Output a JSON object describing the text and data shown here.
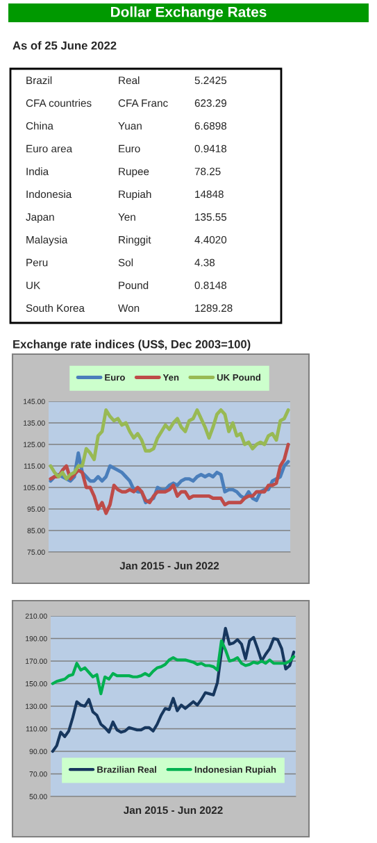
{
  "chart_data": [
    {
      "type": "other",
      "title": "Dollar Exchange Rates",
      "subtitle": "As of 25 June 2022",
      "annotations": [
        "Brazil",
        "Real",
        "5.2425",
        "CFA countries",
        "CFA Franc",
        "623.29",
        "China",
        "Yuan",
        "6.6898",
        "Euro area",
        "Euro",
        "0.9418",
        "India",
        "Rupee",
        "78.25",
        "Indonesia",
        "Rupiah",
        "14848",
        "Japan",
        "Yen",
        "135.55",
        "Malaysia",
        "Ringgit",
        "4.4020",
        "Peru",
        "Sol",
        "4.38",
        "UK",
        "Pound",
        "0.8148",
        "South Korea",
        "Won",
        "1289.28"
      ]
    },
    {
      "type": "line",
      "title": "Exchange rate indices (US$, Dec 2003=100)",
      "xlabel": "Jan 2015 - Jun 2022",
      "categories": [
        null,
        null,
        null,
        null,
        null,
        null,
        null,
        null,
        null,
        null,
        null,
        null,
        null,
        null,
        null,
        null,
        null,
        null,
        null,
        null,
        null,
        null,
        null,
        null,
        null,
        null,
        null,
        null,
        null,
        null,
        null,
        null,
        null,
        null,
        null,
        null,
        null,
        null,
        null,
        null,
        null,
        null,
        null,
        null,
        null,
        null,
        null,
        null,
        null,
        null,
        null,
        null,
        null,
        null,
        null,
        null,
        null,
        null,
        null,
        null,
        null
      ],
      "series": [
        {
          "name": "Euro",
          "color": "#4a7ebb",
          "values": [
            108,
            110,
            111,
            110,
            109,
            108,
            110,
            121,
            112,
            110,
            108,
            108,
            110,
            108,
            110,
            115,
            114,
            113,
            112,
            110,
            108,
            104,
            103,
            103,
            98,
            99,
            100,
            105,
            104,
            104,
            106,
            107,
            106,
            108,
            109,
            109,
            108,
            110,
            111,
            110,
            111,
            110,
            112,
            111,
            103,
            104,
            104,
            103,
            101,
            100,
            103,
            100,
            99,
            103,
            104,
            104,
            108,
            109,
            110,
            115,
            117
          ]
        },
        {
          "name": "Yen",
          "color": "#be4b48",
          "values": [
            109,
            110,
            110,
            113,
            115,
            109,
            111,
            113,
            112,
            105,
            105,
            101,
            95,
            98,
            93,
            97,
            106,
            104,
            103,
            103,
            104,
            103,
            105,
            103,
            99,
            98,
            101,
            103,
            103,
            103,
            104,
            106,
            101,
            103,
            103,
            100,
            101,
            101,
            101,
            101,
            101,
            100,
            100,
            100,
            97,
            98,
            98,
            98,
            98,
            100,
            101,
            101,
            103,
            103,
            103,
            106,
            106,
            107,
            115,
            118,
            125
          ]
        },
        {
          "name": "UK Pound",
          "color": "#98b954",
          "values": [
            115,
            112,
            110,
            112,
            109,
            111,
            112,
            115,
            115,
            123,
            121,
            118,
            129,
            131,
            141,
            138,
            136,
            137,
            134,
            135,
            131,
            128,
            130,
            127,
            122,
            122,
            123,
            128,
            131,
            134,
            132,
            135,
            137,
            133,
            131,
            136,
            137,
            141,
            137,
            133,
            128,
            133,
            139,
            141,
            139,
            131,
            135,
            129,
            130,
            125,
            126,
            123,
            125,
            126,
            125,
            129,
            130,
            127,
            136,
            137,
            141
          ]
        }
      ],
      "ylim": [
        75,
        145
      ],
      "yticks": [
        {
          "value": 75,
          "label": "75.00"
        },
        {
          "value": 85,
          "label": "85.00"
        },
        {
          "value": 95,
          "label": "95.00"
        },
        {
          "value": 105,
          "label": "105.00"
        },
        {
          "value": 115,
          "label": "115.00"
        },
        {
          "value": 125,
          "label": "125.00"
        },
        {
          "value": 135,
          "label": "135.00"
        },
        {
          "value": 145,
          "label": "145.00"
        }
      ],
      "grid": "y",
      "legend": "top",
      "tick_labels": "y"
    },
    {
      "type": "line",
      "xlabel": "Jan 2015 - Jun 2022",
      "categories": [
        null,
        null,
        null,
        null,
        null,
        null,
        null,
        null,
        null,
        null,
        null,
        null,
        null,
        null,
        null,
        null,
        null,
        null,
        null,
        null,
        null,
        null,
        null,
        null,
        null,
        null,
        null,
        null,
        null,
        null,
        null,
        null,
        null,
        null,
        null,
        null,
        null,
        null,
        null,
        null,
        null,
        null,
        null,
        null,
        null,
        null,
        null,
        null,
        null,
        null,
        null,
        null,
        null,
        null,
        null,
        null,
        null,
        null,
        null,
        null,
        null
      ],
      "series": [
        {
          "name": "Brazilian Real",
          "color": "#17375e",
          "values": [
            90,
            95,
            107,
            103,
            108,
            120,
            134,
            131,
            130,
            136,
            125,
            122,
            114,
            111,
            107,
            116,
            109,
            107,
            108,
            111,
            110,
            109,
            109,
            111,
            111,
            108,
            114,
            122,
            128,
            127,
            137,
            126,
            131,
            128,
            131,
            134,
            131,
            136,
            142,
            141,
            140,
            151,
            178,
            199,
            185,
            186,
            189,
            185,
            172,
            188,
            191,
            181,
            170,
            176,
            181,
            190,
            189,
            181,
            163,
            166,
            178
          ]
        },
        {
          "name": "Indonesian Rupiah",
          "color": "#00b050",
          "values": [
            150,
            152,
            153,
            154,
            157,
            158,
            168,
            162,
            164,
            160,
            156,
            158,
            141,
            156,
            154,
            159,
            157,
            157,
            157,
            157,
            156,
            156,
            157,
            159,
            157,
            161,
            164,
            165,
            167,
            171,
            173,
            171,
            171,
            171,
            170,
            169,
            167,
            168,
            166,
            166,
            165,
            162,
            188,
            180,
            170,
            171,
            173,
            168,
            166,
            167,
            169,
            168,
            170,
            168,
            171,
            168,
            168,
            168,
            168,
            170,
            174
          ]
        }
      ],
      "ylim": [
        50,
        210
      ],
      "yticks": [
        {
          "value": 50,
          "label": "50.00"
        },
        {
          "value": 70,
          "label": "70.00"
        },
        {
          "value": 90,
          "label": "90.00"
        },
        {
          "value": 110,
          "label": "110.00"
        },
        {
          "value": 130,
          "label": "130.00"
        },
        {
          "value": 150,
          "label": "150.00"
        },
        {
          "value": 170,
          "label": "170.00"
        },
        {
          "value": 190,
          "label": "190.00"
        },
        {
          "value": 210,
          "label": "210.00"
        }
      ],
      "grid": "y",
      "legend": "bottom",
      "tick_labels": "y"
    }
  ]
}
